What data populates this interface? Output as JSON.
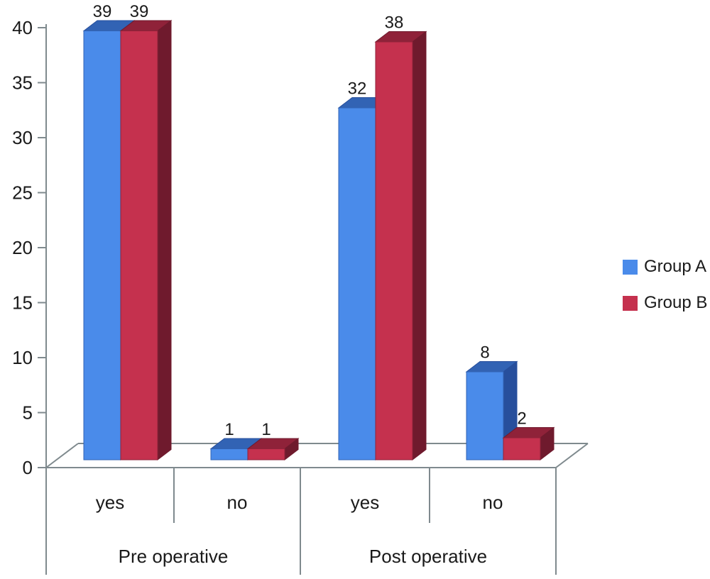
{
  "chart_data": {
    "type": "bar",
    "subtype": "3d_clustered_column",
    "title": "",
    "xlabel": "",
    "ylabel": "",
    "ylim": [
      0,
      40
    ],
    "ytick_step": 5,
    "yticks": [
      0,
      5,
      10,
      15,
      20,
      25,
      30,
      35,
      40
    ],
    "grid": false,
    "legend_position": "right",
    "data_labels": true,
    "categories": [
      {
        "label": "yes",
        "group": "Pre operative"
      },
      {
        "label": "no",
        "group": "Pre operative"
      },
      {
        "label": "yes",
        "group": "Post operative"
      },
      {
        "label": "no",
        "group": "Post operative"
      }
    ],
    "groups": [
      {
        "label": "Pre operative",
        "span": 2
      },
      {
        "label": "Post operative",
        "span": 2
      }
    ],
    "series": [
      {
        "name": "Group A",
        "values": [
          39,
          1,
          32,
          8
        ],
        "color": "#4a8bea",
        "color_top": "#3263b4",
        "color_side": "#274f9c"
      },
      {
        "name": "Group B",
        "values": [
          39,
          1,
          38,
          2
        ],
        "color": "#c5314e",
        "color_top": "#8f2239",
        "color_side": "#6f1a2d"
      }
    ]
  },
  "colors": {
    "axis_line": "#7f8a8e",
    "text": "#1a1a1a",
    "background": "#ffffff"
  }
}
